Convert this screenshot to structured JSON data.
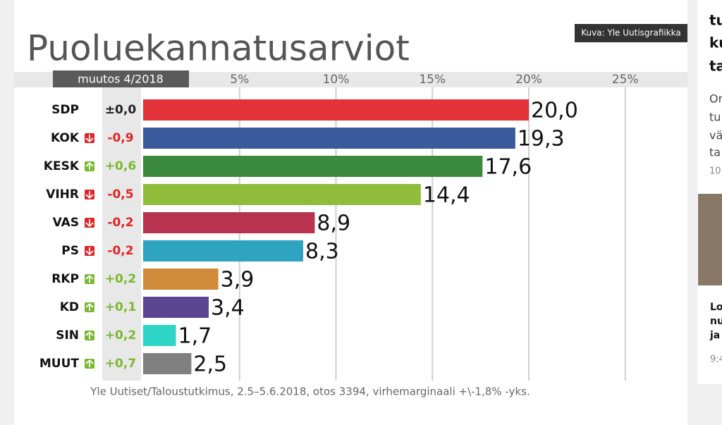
{
  "chart_data": {
    "type": "bar",
    "orientation": "horizontal",
    "title": "Puoluekannatusarviot",
    "credit": "Kuva: Yle Uutisgrafiikka",
    "change_header": "muutos 4/2018",
    "categories": [
      "SDP",
      "KOK",
      "KESK",
      "VIHR",
      "VAS",
      "PS",
      "RKP",
      "KD",
      "SIN",
      "MUUT"
    ],
    "values": [
      20.0,
      19.3,
      17.6,
      14.4,
      8.9,
      8.3,
      3.9,
      3.4,
      1.7,
      2.5
    ],
    "value_labels": [
      "20,0",
      "19,3",
      "17,6",
      "14,4",
      "8,9",
      "8,3",
      "3,9",
      "3,4",
      "1,7",
      "2,5"
    ],
    "colors": [
      "#e3323a",
      "#3a5a9e",
      "#3c8a3e",
      "#8fbc3a",
      "#b8334d",
      "#2ea4c0",
      "#d08b3a",
      "#5a4690",
      "#2ed6c8",
      "#808080"
    ],
    "changes": [
      {
        "value": 0,
        "label": "±0,0"
      },
      {
        "value": -0.9,
        "label": "-0,9"
      },
      {
        "value": 0.6,
        "label": "+0,6"
      },
      {
        "value": -0.5,
        "label": "-0,5"
      },
      {
        "value": -0.2,
        "label": "-0,2"
      },
      {
        "value": -0.2,
        "label": "-0,2"
      },
      {
        "value": 0.2,
        "label": "+0,2"
      },
      {
        "value": 0.1,
        "label": "+0,1"
      },
      {
        "value": 0.2,
        "label": "+0,2"
      },
      {
        "value": 0.7,
        "label": "+0,7"
      }
    ],
    "xlim": [
      0,
      28.2
    ],
    "xticks": [
      {
        "value": 5,
        "label": "5%"
      },
      {
        "value": 10,
        "label": "10%"
      },
      {
        "value": 15,
        "label": "15%"
      },
      {
        "value": 20,
        "label": "20%"
      },
      {
        "value": 25,
        "label": "25%"
      }
    ],
    "grid": true,
    "source": "Yle Uutiset/Taloustutkimus, 2.5–5.6.2018, otos 3394, virhemarginaali +\\-1,8% -yks."
  },
  "sidebar": {
    "headline": [
      "tu",
      "ku",
      "ta"
    ],
    "teaser": [
      "Or",
      "tu",
      "vä",
      "ta"
    ],
    "time": "10",
    "headline2": [
      "Lo",
      "nu",
      "ja"
    ],
    "time2": "9:4"
  }
}
